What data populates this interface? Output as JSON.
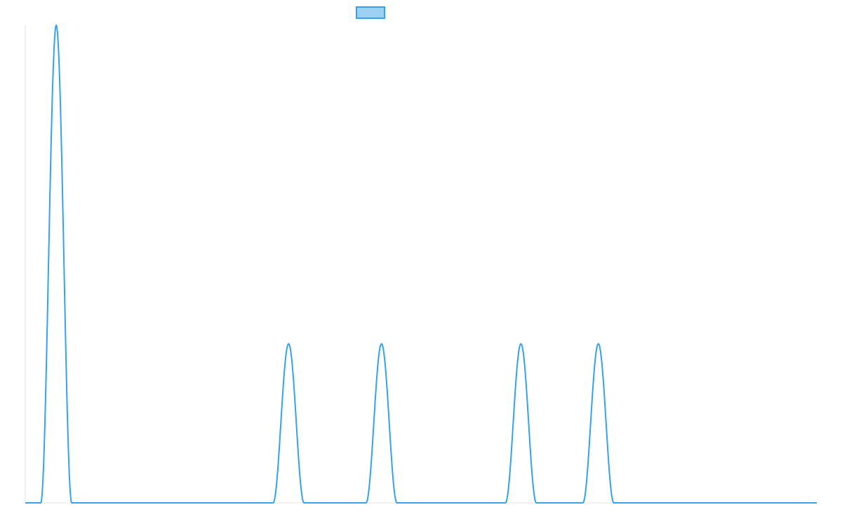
{
  "chart_data": {
    "type": "line",
    "title": "",
    "xlabel": "",
    "ylabel": "",
    "grid": false,
    "legend": {
      "placement": "top-center",
      "entries": [
        {
          "label": "",
          "fill": "#9dd1f3",
          "stroke": "#36a2eb"
        }
      ]
    },
    "xlim": [
      0,
      1022
    ],
    "ylim": [
      0,
      1
    ],
    "series": [
      {
        "color": "#36a2eb",
        "peaks": [
          {
            "center": 40,
            "half_width": 20,
            "height": 1.0
          },
          {
            "center": 340,
            "half_width": 20,
            "height": 0.333
          },
          {
            "center": 460,
            "half_width": 20,
            "height": 0.333
          },
          {
            "center": 640,
            "half_width": 20,
            "height": 0.333
          },
          {
            "center": 740,
            "half_width": 20,
            "height": 0.333
          }
        ]
      }
    ]
  }
}
